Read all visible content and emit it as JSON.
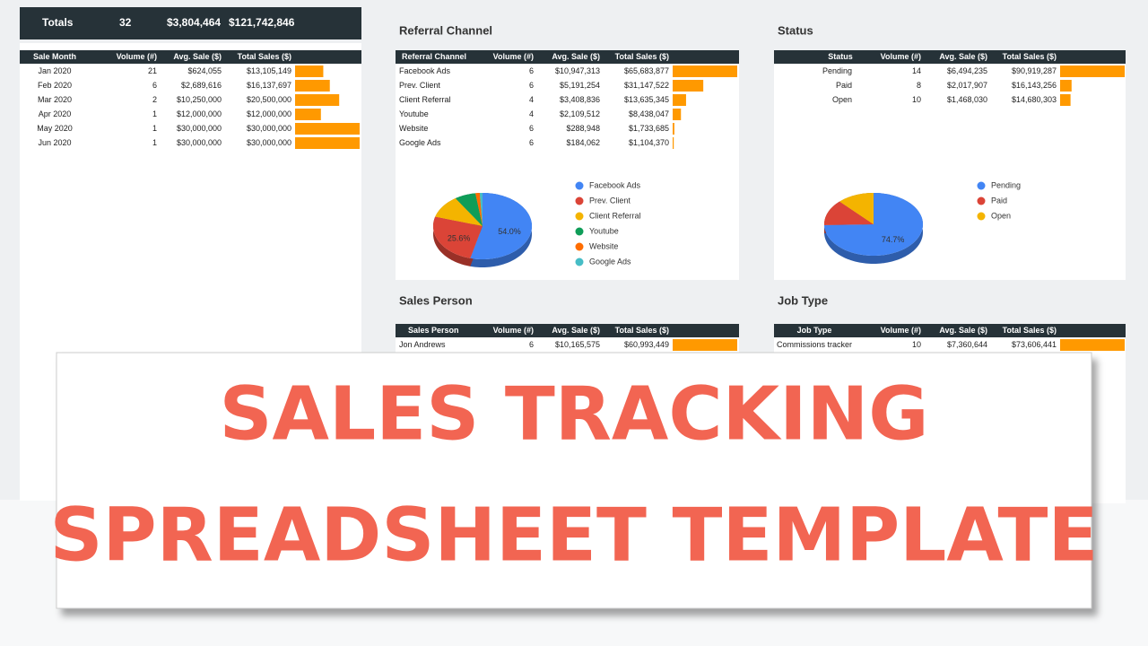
{
  "totals": {
    "label": "Totals",
    "volume": "32",
    "avg_sale": "$3,804,464",
    "total_sales": "$121,742,846"
  },
  "sections": [
    {
      "columns": [
        "Sale Month",
        "Volume (#)",
        "Avg. Sale ($)",
        "Total Sales ($)"
      ],
      "rows": [
        [
          "Jan 2020",
          "21",
          "$624,055",
          "$13,105,149"
        ],
        [
          "Feb 2020",
          "6",
          "$2,689,616",
          "$16,137,697"
        ],
        [
          "Mar 2020",
          "2",
          "$10,250,000",
          "$20,500,000"
        ],
        [
          "Apr 2020",
          "1",
          "$12,000,000",
          "$12,000,000"
        ],
        [
          "May 2020",
          "1",
          "$30,000,000",
          "$30,000,000"
        ],
        [
          "Jun 2020",
          "1",
          "$30,000,000",
          "$30,000,000"
        ]
      ]
    },
    {
      "title": "Referral Channel",
      "columns": [
        "Referral Channel",
        "Volume (#)",
        "Avg. Sale ($)",
        "Total Sales ($)"
      ],
      "rows": [
        [
          "Facebook Ads",
          "6",
          "$10,947,313",
          "$65,683,877"
        ],
        [
          "Prev. Client",
          "6",
          "$5,191,254",
          "$31,147,522"
        ],
        [
          "Client Referral",
          "4",
          "$3,408,836",
          "$13,635,345"
        ],
        [
          "Youtube",
          "4",
          "$2,109,512",
          "$8,438,047"
        ],
        [
          "Website",
          "6",
          "$288,948",
          "$1,733,685"
        ],
        [
          "Google Ads",
          "6",
          "$184,062",
          "$1,104,370"
        ]
      ],
      "pie": {
        "type": "pie",
        "categories": [
          "Facebook Ads",
          "Prev. Client",
          "Client Referral",
          "Youtube",
          "Website",
          "Google Ads"
        ],
        "values": [
          54.0,
          25.6,
          11.2,
          6.9,
          1.4,
          0.9
        ],
        "value_labels": [
          "54.0%",
          "25.6%",
          null,
          null,
          null,
          null
        ],
        "colors": [
          "#4285f4",
          "#db4437",
          "#f4b400",
          "#0f9d58",
          "#ff6d00",
          "#46bdc6"
        ]
      }
    },
    {
      "title": "Status",
      "columns": [
        "Status",
        "Volume (#)",
        "Avg. Sale ($)",
        "Total Sales ($)"
      ],
      "rows": [
        [
          "Pending",
          "14",
          "$6,494,235",
          "$90,919,287"
        ],
        [
          "Paid",
          "8",
          "$2,017,907",
          "$16,143,256"
        ],
        [
          "Open",
          "10",
          "$1,468,030",
          "$14,680,303"
        ]
      ],
      "pie": {
        "type": "pie",
        "categories": [
          "Pending",
          "Paid",
          "Open"
        ],
        "values": [
          74.7,
          13.3,
          12.1
        ],
        "value_labels": [
          "74.7%",
          null,
          null
        ],
        "colors": [
          "#4285f4",
          "#db4437",
          "#f4b400"
        ]
      }
    },
    {
      "title": "Sales Person",
      "columns": [
        "Sales Person",
        "Volume (#)",
        "Avg. Sale ($)",
        "Total Sales ($)"
      ],
      "rows": [
        [
          "Jon Andrews",
          "6",
          "$10,165,575",
          "$60,993,449"
        ]
      ]
    },
    {
      "title": "Job Type",
      "columns": [
        "Job Type",
        "Volume (#)",
        "Avg. Sale ($)",
        "Total Sales ($)"
      ],
      "rows": [
        [
          "Commissions tracker",
          "10",
          "$7,360,644",
          "$73,606,441"
        ]
      ]
    }
  ],
  "banner": {
    "lines": [
      "SALES TRACKING",
      "SPREADSHEET TEMPLATE"
    ]
  }
}
